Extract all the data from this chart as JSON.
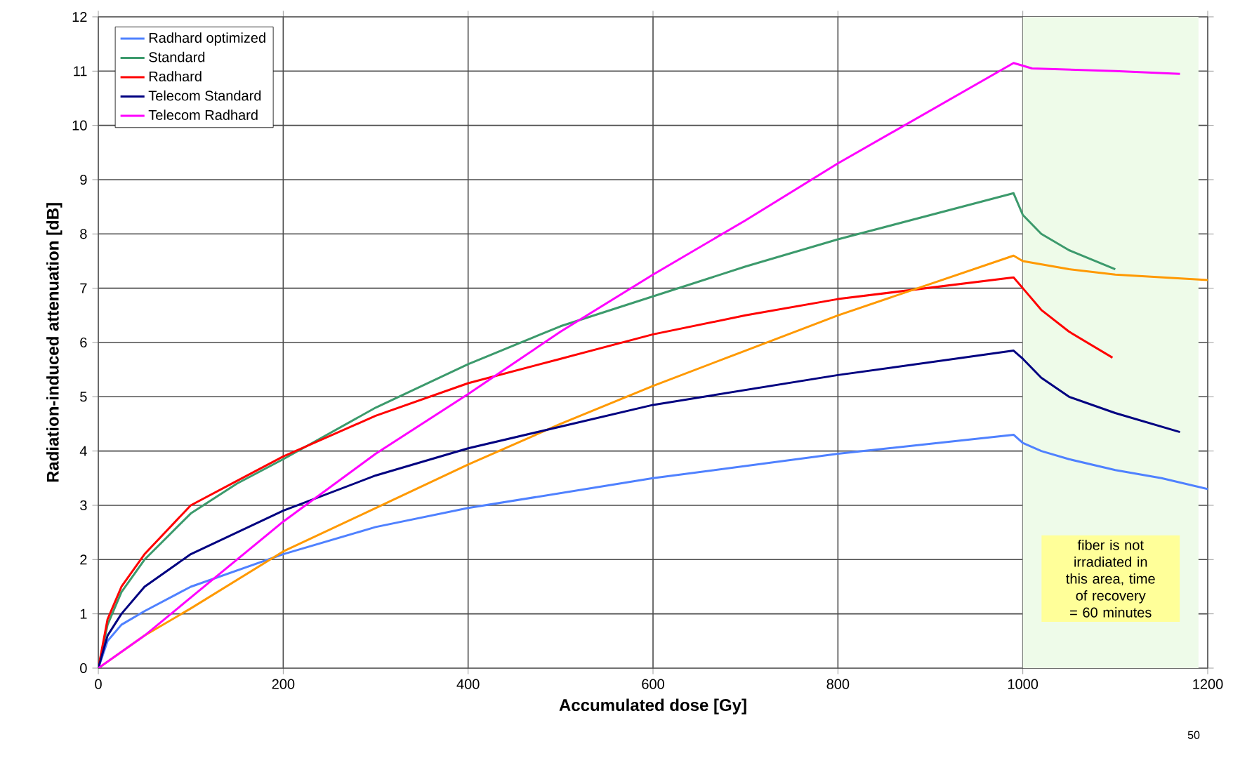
{
  "chart_data": {
    "type": "line",
    "xlabel": "Accumulated dose [Gy]",
    "ylabel": "Radiation-induced attenuation [dB]",
    "xlim": [
      0,
      1200
    ],
    "xticks": [
      0,
      200,
      400,
      600,
      800,
      1000,
      1200
    ],
    "ylim": [
      0,
      12
    ],
    "yticks": [
      0,
      1,
      2,
      3,
      4,
      5,
      6,
      7,
      8,
      9,
      10,
      11,
      12
    ],
    "grid": true,
    "legend": "top left",
    "line_style": "solid",
    "marker": "none",
    "series": [
      {
        "name": "Radhard optimized",
        "color": "#4f81ff",
        "x": [
          0,
          10,
          25,
          50,
          100,
          200,
          300,
          400,
          600,
          800,
          990,
          1000,
          1020,
          1050,
          1100,
          1150,
          1200
        ],
        "values": [
          0,
          0.5,
          0.8,
          1.05,
          1.5,
          2.1,
          2.6,
          2.95,
          3.5,
          3.95,
          4.3,
          4.15,
          4.0,
          3.85,
          3.65,
          3.5,
          3.3
        ]
      },
      {
        "name": "Standard",
        "color": "#3c9a6c",
        "x": [
          0,
          10,
          25,
          50,
          100,
          150,
          200,
          300,
          400,
          500,
          600,
          700,
          800,
          990,
          1000,
          1020,
          1050,
          1100
        ],
        "values": [
          0,
          0.8,
          1.4,
          2.0,
          2.85,
          3.4,
          3.85,
          4.8,
          5.6,
          6.3,
          6.85,
          7.4,
          7.9,
          8.75,
          8.35,
          8.0,
          7.7,
          7.35
        ]
      },
      {
        "name": "Radhard",
        "color": "#ff0000",
        "x": [
          0,
          10,
          25,
          50,
          100,
          150,
          200,
          300,
          400,
          500,
          600,
          700,
          800,
          990,
          1000,
          1020,
          1050,
          1097
        ],
        "values": [
          0,
          0.9,
          1.5,
          2.1,
          3.0,
          3.45,
          3.9,
          4.65,
          5.25,
          5.7,
          6.15,
          6.5,
          6.8,
          7.2,
          7.0,
          6.6,
          6.2,
          5.72
        ]
      },
      {
        "color": "#ff9900",
        "x": [
          0,
          50,
          100,
          200,
          300,
          400,
          500,
          600,
          700,
          800,
          990,
          1000,
          1050,
          1100,
          1200
        ],
        "values": [
          0,
          0.6,
          1.1,
          2.15,
          2.95,
          3.75,
          4.5,
          5.2,
          5.85,
          6.5,
          7.6,
          7.5,
          7.35,
          7.25,
          7.15
        ]
      },
      {
        "name": "Telecom Standard",
        "color": "#000080",
        "x": [
          0,
          10,
          25,
          50,
          100,
          200,
          300,
          400,
          500,
          600,
          800,
          990,
          1000,
          1020,
          1050,
          1100,
          1170
        ],
        "values": [
          0,
          0.6,
          1.0,
          1.5,
          2.1,
          2.9,
          3.55,
          4.05,
          4.45,
          4.85,
          5.4,
          5.85,
          5.7,
          5.35,
          5.0,
          4.7,
          4.35
        ]
      },
      {
        "name": "Telecom Radhard",
        "color": "#ff00ff",
        "x": [
          0,
          50,
          100,
          200,
          300,
          400,
          500,
          600,
          700,
          800,
          990,
          1010,
          1100,
          1170
        ],
        "values": [
          0,
          0.6,
          1.3,
          2.7,
          3.95,
          5.05,
          6.2,
          7.25,
          8.25,
          9.3,
          11.15,
          11.05,
          11.0,
          10.95
        ]
      }
    ],
    "bands": [
      {
        "axis": "x",
        "from": 1000,
        "to": 1190,
        "color": "#eefbe9",
        "label": "fiber is not irradiated in this area, time of recovery = 60 minutes"
      }
    ],
    "annotations": [
      "50"
    ]
  }
}
